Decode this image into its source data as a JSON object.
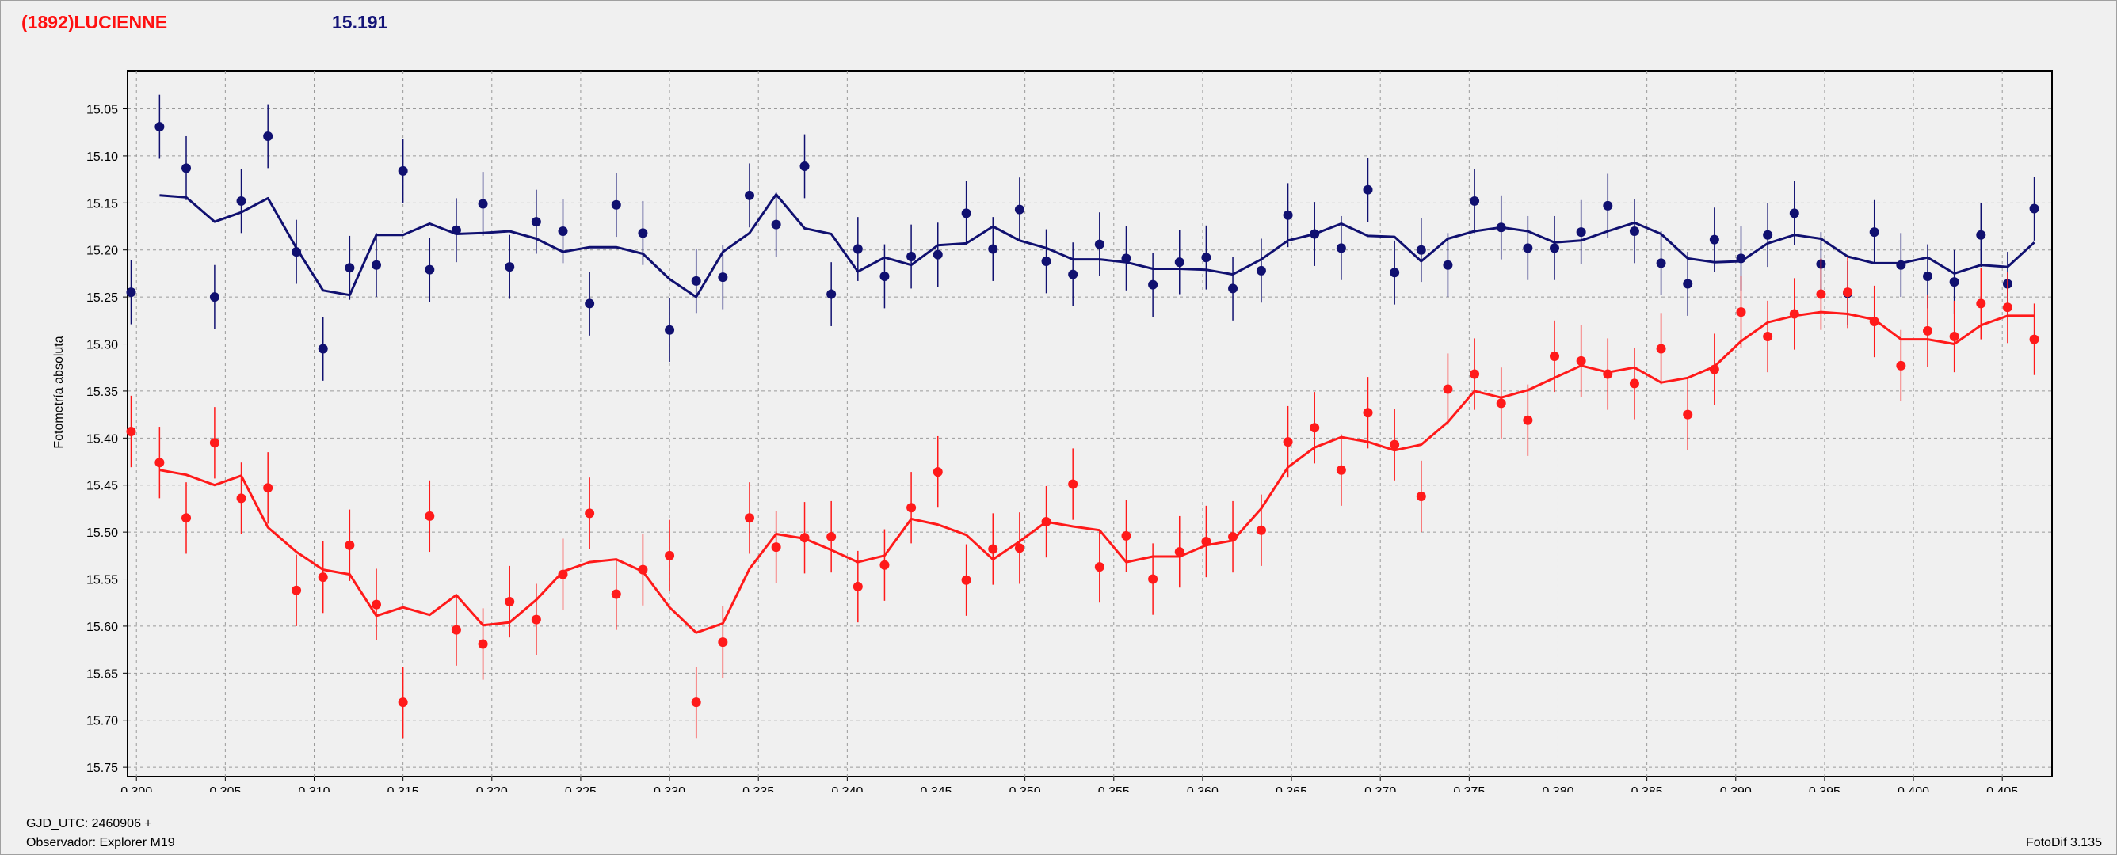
{
  "header": {
    "object_name": "(1892)LUCIENNE",
    "reference_mag": "15.191"
  },
  "footer": {
    "gjd": "GJD_UTC: 2460906 +",
    "observer": "Observador: Explorer M19",
    "software": "FotoDif 3.135"
  },
  "colors": {
    "object": "#ff1a1a",
    "reference": "#101070",
    "grid": "#9a9a9a",
    "plot_bg": "#f0f0f0"
  },
  "chart_data": {
    "type": "scatter",
    "xlabel": "",
    "ylabel": "Fotometría absoluta",
    "xlim": [
      0.2995,
      0.4078
    ],
    "ylim": [
      15.76,
      15.01
    ],
    "y_inverted": true,
    "grid": true,
    "x_ticks": [
      "0.300",
      "0.305",
      "0.310",
      "0.315",
      "0.320",
      "0.325",
      "0.330",
      "0.335",
      "0.340",
      "0.345",
      "0.350",
      "0.355",
      "0.360",
      "0.365",
      "0.370",
      "0.375",
      "0.380",
      "0.385",
      "0.390",
      "0.395",
      "0.400",
      "0.405"
    ],
    "y_ticks": [
      "15.05",
      "15.10",
      "15.15",
      "15.20",
      "15.25",
      "15.30",
      "15.35",
      "15.40",
      "15.45",
      "15.50",
      "15.55",
      "15.60",
      "15.65",
      "15.70",
      "15.75"
    ],
    "series": [
      {
        "color": "#101070",
        "err": 0.034,
        "x": [
          0.2997,
          0.3013,
          0.3028,
          0.3044,
          0.3059,
          0.3074,
          0.309,
          0.3105,
          0.312,
          0.3135,
          0.315,
          0.3165,
          0.318,
          0.3195,
          0.321,
          0.3225,
          0.324,
          0.3255,
          0.327,
          0.3285,
          0.33,
          0.3315,
          0.333,
          0.3345,
          0.336,
          0.3376,
          0.3391,
          0.3406,
          0.3421,
          0.3436,
          0.3451,
          0.3467,
          0.3482,
          0.3497,
          0.3512,
          0.3527,
          0.3542,
          0.3557,
          0.3572,
          0.3587,
          0.3602,
          0.3617,
          0.3633,
          0.3648,
          0.3663,
          0.3678,
          0.3693,
          0.3708,
          0.3723,
          0.3738,
          0.3753,
          0.3768,
          0.3783,
          0.3798,
          0.3813,
          0.3828,
          0.3843,
          0.3858,
          0.3873,
          0.3888,
          0.3903,
          0.3918,
          0.3933,
          0.3948,
          0.3963,
          0.3978,
          0.3993,
          0.4008,
          0.4023,
          0.4038,
          0.4053,
          0.4068
        ],
        "y": [
          15.245,
          15.069,
          15.113,
          15.25,
          15.148,
          15.079,
          15.202,
          15.305,
          15.219,
          15.216,
          15.116,
          15.221,
          15.179,
          15.151,
          15.218,
          15.17,
          15.18,
          15.257,
          15.152,
          15.182,
          15.285,
          15.233,
          15.229,
          15.142,
          15.173,
          15.111,
          15.247,
          15.199,
          15.228,
          15.207,
          15.205,
          15.161,
          15.199,
          15.157,
          15.212,
          15.226,
          15.194,
          15.209,
          15.237,
          15.213,
          15.208,
          15.241,
          15.222,
          15.163,
          15.183,
          15.198,
          15.136,
          15.224,
          15.2,
          15.216,
          15.148,
          15.176,
          15.198,
          15.198,
          15.181,
          15.153,
          15.18,
          15.214,
          15.236,
          15.189,
          15.209,
          15.184,
          15.161,
          15.215,
          15.246,
          15.181,
          15.216,
          15.228,
          15.234,
          15.184,
          15.236,
          15.156
        ],
        "fit_x": [
          0.3013,
          0.3028,
          0.3044,
          0.3059,
          0.3074,
          0.309,
          0.3105,
          0.312,
          0.3135,
          0.315,
          0.3165,
          0.318,
          0.3195,
          0.321,
          0.3225,
          0.324,
          0.3255,
          0.327,
          0.3285,
          0.33,
          0.3315,
          0.333,
          0.3345,
          0.336,
          0.3376,
          0.3391,
          0.3406,
          0.3421,
          0.3436,
          0.3451,
          0.3467,
          0.3482,
          0.3497,
          0.3512,
          0.3527,
          0.3542,
          0.3557,
          0.3572,
          0.3587,
          0.3602,
          0.3617,
          0.3633,
          0.3648,
          0.3663,
          0.3678,
          0.3693,
          0.3708,
          0.3723,
          0.3738,
          0.3753,
          0.3768,
          0.3783,
          0.3798,
          0.3813,
          0.3828,
          0.3843,
          0.3858,
          0.3873,
          0.3888,
          0.3903,
          0.3918,
          0.3933,
          0.3948,
          0.3963,
          0.3978,
          0.3993,
          0.4008,
          0.4023,
          0.4038,
          0.4053
        ],
        "fit_y": [
          15.142,
          15.144,
          15.17,
          15.16,
          15.145,
          15.198,
          15.243,
          15.248,
          15.184,
          15.184,
          15.172,
          15.183,
          15.182,
          15.18,
          15.188,
          15.202,
          15.197,
          15.197,
          15.204,
          15.231,
          15.25,
          15.202,
          15.182,
          15.141,
          15.177,
          15.183,
          15.223,
          15.208,
          15.216,
          15.195,
          15.193,
          15.175,
          15.19,
          15.198,
          15.21,
          15.21,
          15.213,
          15.22,
          15.22,
          15.221,
          15.226,
          15.21,
          15.19,
          15.183,
          15.172,
          15.185,
          15.186,
          15.212,
          15.188,
          15.18,
          15.176,
          15.18,
          15.192,
          15.19,
          15.18,
          15.171,
          15.183,
          15.209,
          15.213,
          15.212,
          15.193,
          15.184,
          15.188,
          15.207,
          15.214,
          15.214,
          15.208,
          15.225,
          15.216,
          15.218
        ],
        "fit_end": [
          0.4068,
          15.192
        ]
      },
      {
        "color": "#ff1a1a",
        "err": 0.038,
        "x": [
          0.2997,
          0.3013,
          0.3028,
          0.3044,
          0.3059,
          0.3074,
          0.309,
          0.3105,
          0.312,
          0.3135,
          0.315,
          0.3165,
          0.318,
          0.3195,
          0.321,
          0.3225,
          0.324,
          0.3255,
          0.327,
          0.3285,
          0.33,
          0.3315,
          0.333,
          0.3345,
          0.336,
          0.3376,
          0.3391,
          0.3406,
          0.3421,
          0.3436,
          0.3451,
          0.3467,
          0.3482,
          0.3497,
          0.3512,
          0.3527,
          0.3542,
          0.3557,
          0.3572,
          0.3587,
          0.3602,
          0.3617,
          0.3633,
          0.3648,
          0.3663,
          0.3678,
          0.3693,
          0.3708,
          0.3723,
          0.3738,
          0.3753,
          0.3768,
          0.3783,
          0.3798,
          0.3813,
          0.3828,
          0.3843,
          0.3858,
          0.3873,
          0.3888,
          0.3903,
          0.3918,
          0.3933,
          0.3948,
          0.3963,
          0.3978,
          0.3993,
          0.4008,
          0.4023,
          0.4038,
          0.4053,
          0.4068
        ],
        "y": [
          15.393,
          15.426,
          15.485,
          15.405,
          15.464,
          15.453,
          15.562,
          15.548,
          15.514,
          15.577,
          15.681,
          15.483,
          15.604,
          15.619,
          15.574,
          15.593,
          15.545,
          15.48,
          15.566,
          15.54,
          15.525,
          15.681,
          15.617,
          15.485,
          15.516,
          15.506,
          15.505,
          15.558,
          15.535,
          15.474,
          15.436,
          15.551,
          15.518,
          15.517,
          15.489,
          15.449,
          15.537,
          15.504,
          15.55,
          15.521,
          15.51,
          15.505,
          15.498,
          15.404,
          15.389,
          15.434,
          15.373,
          15.407,
          15.462,
          15.348,
          15.332,
          15.363,
          15.381,
          15.313,
          15.318,
          15.332,
          15.342,
          15.305,
          15.375,
          15.327,
          15.266,
          15.292,
          15.268,
          15.247,
          15.245,
          15.276,
          15.323,
          15.286,
          15.292,
          15.257,
          15.261,
          15.295
        ],
        "fit_x": [
          0.3013,
          0.3028,
          0.3044,
          0.3059,
          0.3074,
          0.309,
          0.3105,
          0.312,
          0.3135,
          0.315,
          0.3165,
          0.318,
          0.3195,
          0.321,
          0.3225,
          0.324,
          0.3255,
          0.327,
          0.3285,
          0.33,
          0.3315,
          0.333,
          0.3345,
          0.336,
          0.3376,
          0.3391,
          0.3406,
          0.3421,
          0.3436,
          0.3451,
          0.3467,
          0.3482,
          0.3497,
          0.3512,
          0.3527,
          0.3542,
          0.3557,
          0.3572,
          0.3587,
          0.3602,
          0.3617,
          0.3633,
          0.3648,
          0.3663,
          0.3678,
          0.3693,
          0.3708,
          0.3723,
          0.3738,
          0.3753,
          0.3768,
          0.3783,
          0.3798,
          0.3813,
          0.3828,
          0.3843,
          0.3858,
          0.3873,
          0.3888,
          0.3903,
          0.3918,
          0.3933,
          0.3948,
          0.3963,
          0.3978,
          0.3993,
          0.4008,
          0.4023,
          0.4038,
          0.4053
        ],
        "fit_y": [
          15.434,
          15.439,
          15.45,
          15.44,
          15.495,
          15.521,
          15.54,
          15.545,
          15.589,
          15.58,
          15.588,
          15.567,
          15.599,
          15.596,
          15.572,
          15.542,
          15.532,
          15.529,
          15.542,
          15.58,
          15.607,
          15.597,
          15.539,
          15.502,
          15.507,
          15.519,
          15.532,
          15.525,
          15.486,
          15.492,
          15.503,
          15.529,
          15.51,
          15.489,
          15.494,
          15.498,
          15.532,
          15.526,
          15.526,
          15.514,
          15.509,
          15.475,
          15.431,
          15.41,
          15.399,
          15.404,
          15.413,
          15.407,
          15.383,
          15.35,
          15.357,
          15.349,
          15.336,
          15.323,
          15.33,
          15.325,
          15.341,
          15.336,
          15.324,
          15.297,
          15.277,
          15.27,
          15.266,
          15.268,
          15.274,
          15.295,
          15.295,
          15.3,
          15.28,
          15.27
        ],
        "fit_end": [
          0.4068,
          15.27
        ]
      }
    ]
  }
}
